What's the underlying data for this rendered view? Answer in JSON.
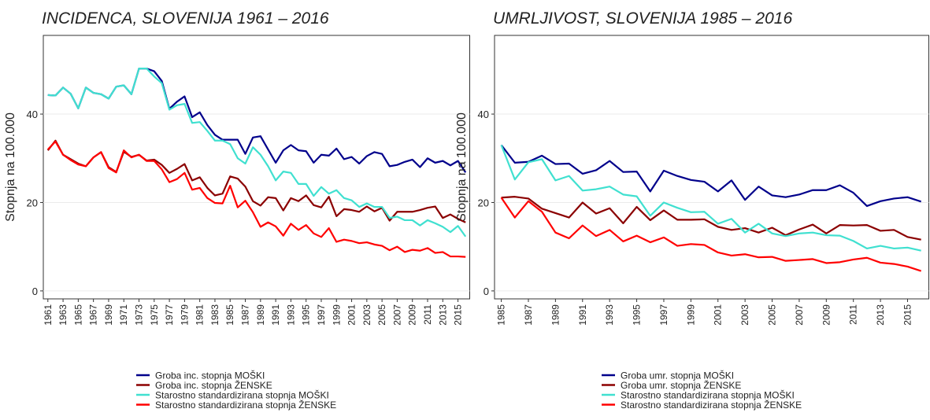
{
  "chart_data": [
    {
      "type": "line",
      "title": "INCIDENCA, SLOVENIJA 1961 – 2016",
      "ylabel": "Stopnja na 100.000",
      "x": [
        1961,
        1962,
        1963,
        1964,
        1965,
        1966,
        1967,
        1968,
        1969,
        1970,
        1971,
        1972,
        1973,
        1974,
        1975,
        1976,
        1977,
        1978,
        1979,
        1980,
        1981,
        1982,
        1983,
        1984,
        1985,
        1986,
        1987,
        1988,
        1989,
        1990,
        1991,
        1992,
        1993,
        1994,
        1995,
        1996,
        1997,
        1998,
        1999,
        2000,
        2001,
        2002,
        2003,
        2004,
        2005,
        2006,
        2007,
        2008,
        2009,
        2010,
        2011,
        2012,
        2013,
        2014,
        2015,
        2016
      ],
      "xlim": [
        1960.4,
        2016.6
      ],
      "xticks": [
        1961,
        1963,
        1965,
        1967,
        1969,
        1971,
        1973,
        1975,
        1977,
        1979,
        1981,
        1983,
        1985,
        1987,
        1989,
        1991,
        1993,
        1995,
        1997,
        1999,
        2001,
        2003,
        2005,
        2007,
        2009,
        2011,
        2013,
        2015
      ],
      "ylim": [
        -1.8,
        57.8
      ],
      "yticks": [
        0,
        20,
        40
      ],
      "grid": true,
      "series": [
        {
          "name": "Groba inc. stopnja MOŠKI",
          "color": "#00008b",
          "values": [
            44.3,
            44.2,
            46,
            44.6,
            41.3,
            46,
            44.8,
            44.5,
            43.5,
            46.2,
            46.5,
            44.5,
            50.3,
            50.3,
            49.7,
            47.5,
            41.2,
            42.8,
            44,
            39.3,
            40.4,
            37.5,
            35.3,
            34.2,
            34.2,
            34.2,
            31,
            34.7,
            35,
            32,
            29,
            31.8,
            33,
            31.8,
            31.6,
            29,
            30.8,
            30.6,
            32.2,
            29.8,
            30.3,
            28.8,
            30.5,
            31.4,
            31,
            28.2,
            28.5,
            29.2,
            29.7,
            28,
            30,
            29,
            29.4,
            28.4,
            29.4,
            26.8
          ]
        },
        {
          "name": "Groba inc. stopnja ŽENSKE",
          "color": "#8b0000",
          "values": [
            31.8,
            34,
            30.8,
            29.8,
            28.8,
            28.2,
            30.2,
            31.4,
            28,
            26.9,
            31.5,
            30.3,
            30.8,
            29.5,
            29.7,
            28.5,
            26.7,
            27.6,
            28.7,
            25,
            25.7,
            23.3,
            21.6,
            22,
            25.9,
            25.4,
            23.6,
            20.3,
            19.3,
            21.2,
            21,
            18.2,
            21,
            20.3,
            21.6,
            19.4,
            18.9,
            21.3,
            16.9,
            18.5,
            18.3,
            17.9,
            19.1,
            18,
            18.8,
            15.9,
            17.9,
            17.9,
            17.9,
            18.3,
            18.8,
            19.1,
            16.5,
            17.3,
            16.3,
            15.5
          ]
        },
        {
          "name": "Starostno standardizirana stopnja MOŠKI",
          "color": "#40e0d0",
          "values": [
            44.3,
            44.2,
            46,
            44.6,
            41.3,
            46,
            44.8,
            44.5,
            43.5,
            46.2,
            46.5,
            44.5,
            50.3,
            50.3,
            48.5,
            47,
            41,
            42,
            42.3,
            38,
            38.2,
            36.2,
            34,
            34,
            33.2,
            30,
            28.8,
            32.5,
            30.8,
            28.2,
            25,
            27,
            26.7,
            24.2,
            24.2,
            21.5,
            23.5,
            22,
            22.8,
            21,
            20.5,
            19,
            19.8,
            19,
            19,
            16.5,
            16.8,
            16,
            16,
            14.8,
            16,
            15.3,
            14.5,
            13.3,
            14.7,
            12.3
          ]
        },
        {
          "name": "Starostno standardizirana stopnja ŽENSKE",
          "color": "#ff0000",
          "values": [
            32,
            33.8,
            30.8,
            29.6,
            28.6,
            28.2,
            30.2,
            31.4,
            27.8,
            26.8,
            31.8,
            30.2,
            30.8,
            29.4,
            29.4,
            27.5,
            24.6,
            25.3,
            26.7,
            22.9,
            23.3,
            21,
            19.9,
            19.8,
            23.8,
            18.9,
            20.4,
            17.8,
            14.5,
            15.5,
            14.6,
            12.5,
            15.2,
            13.8,
            14.9,
            13,
            12.2,
            14.2,
            11.1,
            11.6,
            11.3,
            10.8,
            11,
            10.5,
            10.2,
            9.2,
            10,
            8.8,
            9.3,
            9.1,
            9.7,
            8.6,
            8.8,
            7.8,
            7.8,
            7.7
          ]
        }
      ]
    },
    {
      "type": "line",
      "title": "UMRLJIVOST, SLOVENIJA 1985 – 2016",
      "ylabel": "Stopnja na 100.000",
      "x": [
        1985,
        1986,
        1987,
        1988,
        1989,
        1990,
        1991,
        1992,
        1993,
        1994,
        1995,
        1996,
        1997,
        1998,
        1999,
        2000,
        2001,
        2002,
        2003,
        2004,
        2005,
        2006,
        2007,
        2008,
        2009,
        2010,
        2011,
        2012,
        2013,
        2014,
        2015,
        2016
      ],
      "xlim": [
        1984.5,
        2016.6
      ],
      "xticks": [
        1985,
        1987,
        1989,
        1991,
        1993,
        1995,
        1997,
        1999,
        2001,
        2003,
        2005,
        2007,
        2009,
        2011,
        2013,
        2015
      ],
      "ylim": [
        -1.8,
        57.8
      ],
      "yticks": [
        0,
        20,
        40
      ],
      "grid": true,
      "series": [
        {
          "name": "Groba umr. stopnja MOŠKI",
          "color": "#00008b",
          "values": [
            33,
            29,
            29.2,
            30.6,
            28.7,
            28.8,
            26.5,
            27.3,
            29.4,
            26.9,
            27,
            22.5,
            27.2,
            26,
            25.1,
            24.7,
            22.5,
            25,
            20.6,
            23.6,
            21.6,
            21.2,
            21.8,
            22.8,
            22.8,
            23.9,
            22.2,
            19.2,
            20.3,
            20.9,
            21.2,
            20.2
          ]
        },
        {
          "name": "Groba umr. stopnja ŽENSKE",
          "color": "#8b0000",
          "values": [
            21.1,
            21.3,
            20.9,
            18.6,
            17.6,
            16.6,
            20,
            17.5,
            18.7,
            15.3,
            19,
            16,
            18.2,
            16.1,
            16.1,
            16.2,
            14.5,
            13.8,
            14.2,
            13.2,
            14.3,
            12.6,
            13.9,
            15,
            13,
            14.9,
            14.8,
            14.9,
            13.6,
            13.8,
            12.2,
            11.6
          ]
        },
        {
          "name": "Starostno standardizirana stopnja MOŠKI",
          "color": "#40e0d0",
          "values": [
            33,
            25.2,
            29.1,
            29.8,
            25,
            26,
            22.7,
            23,
            23.6,
            21.8,
            21.4,
            17,
            20,
            18.8,
            17.8,
            17.9,
            15.2,
            16.3,
            13.2,
            15.2,
            13,
            12.4,
            13,
            13.2,
            12.6,
            12.5,
            11.3,
            9.6,
            10.2,
            9.6,
            9.8,
            9.1
          ]
        },
        {
          "name": "Starostno standardizirana stopnja ŽENSKE",
          "color": "#ff0000",
          "values": [
            21.1,
            16.6,
            20.3,
            17.9,
            13.2,
            11.9,
            14.8,
            12.4,
            13.8,
            11.2,
            12.5,
            11,
            12.1,
            10.2,
            10.6,
            10.4,
            8.7,
            8,
            8.3,
            7.6,
            7.7,
            6.8,
            7,
            7.2,
            6.3,
            6.5,
            7.1,
            7.5,
            6.4,
            6.1,
            5.5,
            4.5
          ]
        }
      ]
    }
  ]
}
